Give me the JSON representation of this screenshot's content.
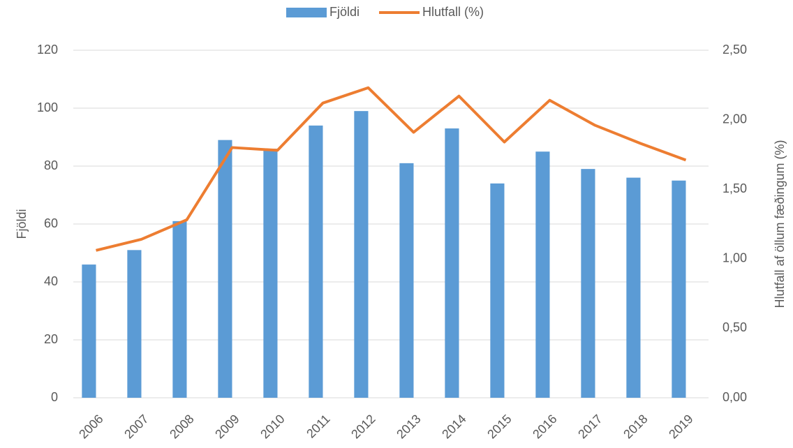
{
  "chart_data": {
    "type": "bar-line",
    "categories": [
      "2006",
      "2007",
      "2008",
      "2009",
      "2010",
      "2011",
      "2012",
      "2013",
      "2014",
      "2015",
      "2016",
      "2017",
      "2018",
      "2019"
    ],
    "series": [
      {
        "name": "Fjöldi",
        "color": "#5b9bd5",
        "type": "bar",
        "values": [
          46,
          51,
          61,
          89,
          86,
          94,
          99,
          81,
          93,
          74,
          85,
          79,
          76,
          75
        ]
      },
      {
        "name": "Hlutfall (%)",
        "color": "#ed7d31",
        "type": "line",
        "axis": "y2",
        "values": [
          1.06,
          1.14,
          1.28,
          1.8,
          1.78,
          2.12,
          2.23,
          1.91,
          2.17,
          1.84,
          2.14,
          1.96,
          1.83,
          1.71
        ]
      }
    ],
    "ylabel": "Fjöldi",
    "y2label": "Hlutfall af öllum fæðingum (%)",
    "ylim": [
      0,
      120
    ],
    "yticks": [
      0,
      20,
      40,
      60,
      80,
      100,
      120
    ],
    "y2lim": [
      0,
      2.5
    ],
    "y2ticks": [
      {
        "value": 0,
        "label": "0,00"
      },
      {
        "value": 0.5,
        "label": "0,50"
      },
      {
        "value": 1,
        "label": "1,00"
      },
      {
        "value": 1.5,
        "label": "1,50"
      },
      {
        "value": 2,
        "label": "2,00"
      },
      {
        "value": 2.5,
        "label": "2,50"
      }
    ],
    "grid": true,
    "legend": "top"
  }
}
